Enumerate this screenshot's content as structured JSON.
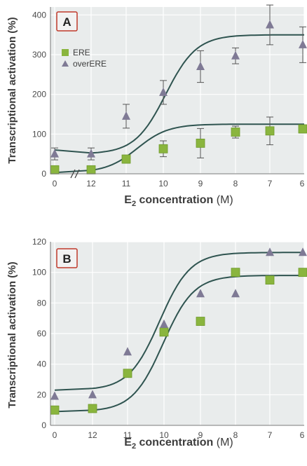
{
  "colors": {
    "plot_bg": "#e9ecec",
    "grid": "#ffffff",
    "curve": "#2f5450",
    "square": "#8ab53e",
    "square_edge": "#6e9a2c",
    "triangle": "#7f7a95",
    "error_bar": "#555555",
    "panel_tag_bg": "#f2f2f2",
    "panel_tag_edge": "#c0392b"
  },
  "chart_data": [
    {
      "type": "scatter",
      "panel": "A",
      "ylabel": "Transcriptional activation (%)",
      "xlabel_main": "E",
      "xlabel_sub": "2",
      "xlabel_rest": " concentration",
      "xlabel_unit": " (M)",
      "x_ticks": [
        "0",
        "12",
        "11",
        "10",
        "9",
        "8",
        "7",
        "6"
      ],
      "axis_break_after": "0",
      "y_ticks": [
        0,
        100,
        200,
        300,
        400
      ],
      "ylim": [
        0,
        420
      ],
      "grid": true,
      "legend_position": "top-left",
      "series": [
        {
          "name": "ERE",
          "marker": "square",
          "values": [
            10,
            10,
            37,
            63,
            77,
            105,
            108,
            113
          ],
          "errors": [
            6,
            10,
            10,
            20,
            37,
            15,
            35,
            10
          ]
        },
        {
          "name": "overERE",
          "marker": "triangle",
          "values": [
            50,
            50,
            145,
            205,
            270,
            297,
            375,
            325
          ],
          "errors": [
            15,
            15,
            30,
            30,
            40,
            20,
            50,
            45
          ]
        }
      ],
      "fits": [
        {
          "series": "ERE",
          "bottom": 3,
          "top": 125,
          "ec50": 10.7,
          "slope": 1.0,
          "x0_value": 3
        },
        {
          "series": "overERE",
          "bottom": 50,
          "top": 350,
          "ec50": 9.9,
          "slope": 1.0,
          "x0_value": 60
        }
      ]
    },
    {
      "type": "scatter",
      "panel": "B",
      "ylabel": "Transcriptional activation (%)",
      "xlabel_main": "E",
      "xlabel_sub": "2",
      "xlabel_rest": " concentration",
      "xlabel_unit": " (M)",
      "x_ticks": [
        "0",
        "12",
        "11",
        "10",
        "9",
        "8",
        "7",
        "6"
      ],
      "y_ticks": [
        0,
        20,
        40,
        60,
        80,
        100,
        120
      ],
      "ylim": [
        0,
        120
      ],
      "grid": true,
      "series": [
        {
          "name": "ERE",
          "marker": "square",
          "values": [
            10,
            11,
            34,
            61,
            68,
            100,
            95,
            100
          ]
        },
        {
          "name": "overERE",
          "marker": "triangle",
          "values": [
            19,
            20,
            48,
            66,
            86,
            86,
            113,
            113
          ]
        }
      ],
      "fits": [
        {
          "series": "ERE",
          "bottom": 9,
          "top": 98,
          "ec50": 10.0,
          "slope": 1.0
        },
        {
          "series": "overERE",
          "bottom": 23,
          "top": 113,
          "ec50": 10.1,
          "slope": 1.0
        }
      ]
    }
  ]
}
